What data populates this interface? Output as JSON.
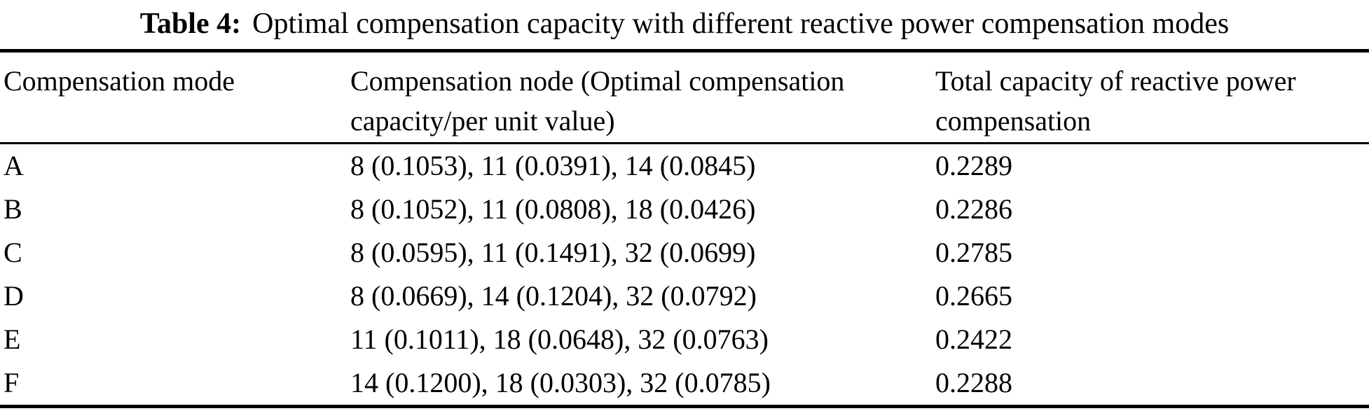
{
  "table": {
    "title_label": "Table 4:",
    "title_text": "Optimal compensation capacity with different reactive power compensation modes",
    "columns": {
      "mode": "Compensation mode",
      "node": "Compensation node (Optimal compensation capacity/per unit value)",
      "total": "Total capacity of reactive power compensation"
    },
    "rows": [
      {
        "mode": "A",
        "nodes": "8 (0.1053), 11 (0.0391), 14 (0.0845)",
        "total": "0.2289"
      },
      {
        "mode": "B",
        "nodes": "8 (0.1052), 11 (0.0808), 18 (0.0426)",
        "total": "0.2286"
      },
      {
        "mode": "C",
        "nodes": "8 (0.0595), 11 (0.1491), 32 (0.0699)",
        "total": "0.2785"
      },
      {
        "mode": "D",
        "nodes": "8 (0.0669), 14 (0.1204), 32 (0.0792)",
        "total": "0.2665"
      },
      {
        "mode": "E",
        "nodes": "11 (0.1011), 18 (0.0648), 32 (0.0763)",
        "total": "0.2422"
      },
      {
        "mode": "F",
        "nodes": "14 (0.1200), 18 (0.0303), 32 (0.0785)",
        "total": "0.2288"
      }
    ],
    "colors": {
      "text": "#000000",
      "background": "#ffffff",
      "rule": "#000000"
    }
  }
}
